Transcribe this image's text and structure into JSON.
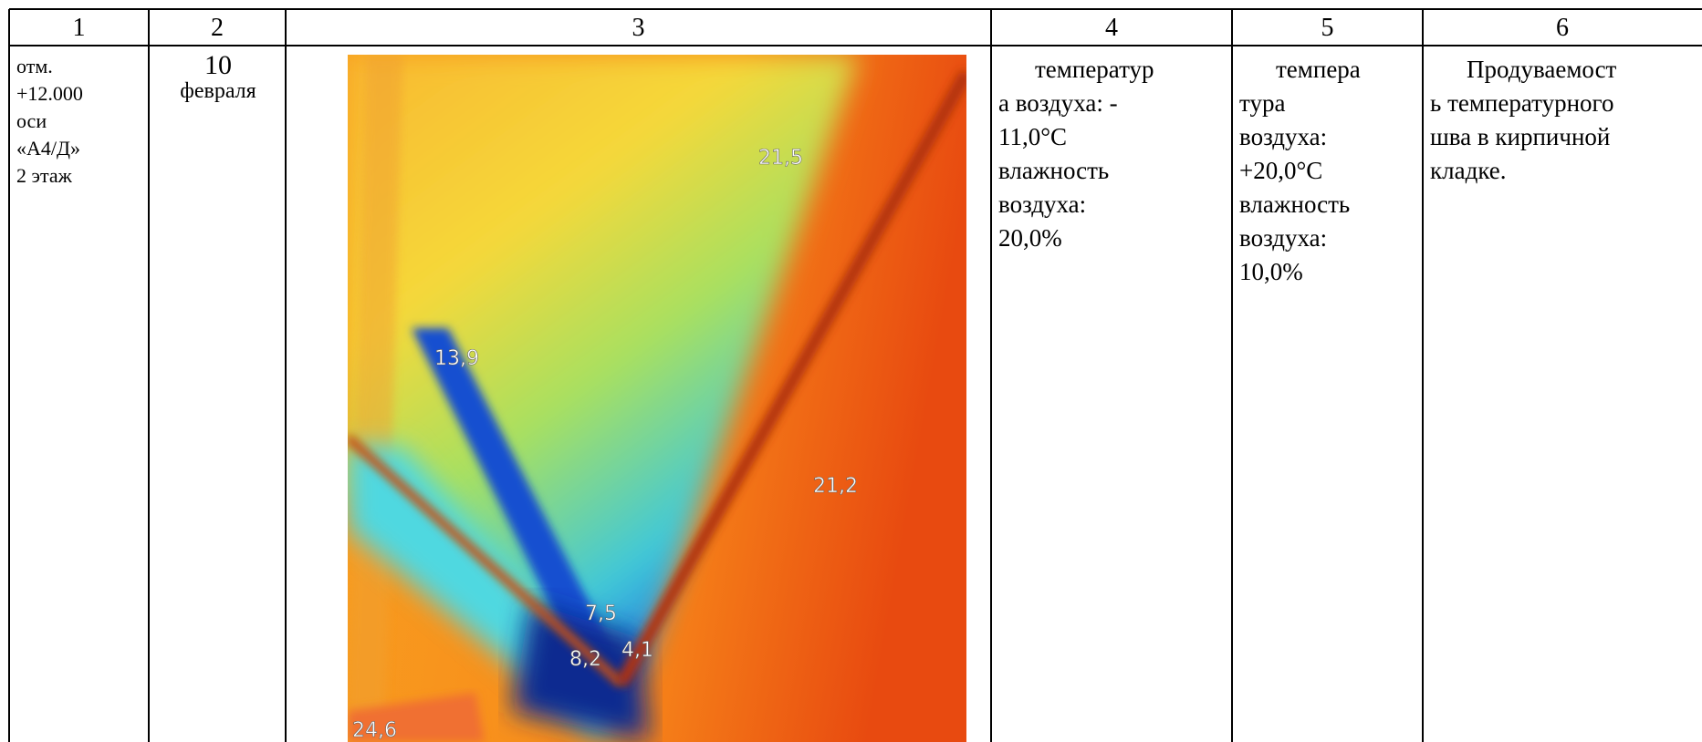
{
  "table": {
    "header": [
      "1",
      "2",
      "3",
      "4",
      "5",
      "6"
    ],
    "rows": [
      [
        [
          "отм.",
          "+12.000",
          "оси",
          "«А4/Д»",
          "2 этаж"
        ],
        [
          "10",
          "февраля"
        ],
        [],
        [
          "температур",
          "а воздуха: -",
          "11,0°C",
          "влажность",
          "воздуха:",
          "20,0%"
        ],
        [
          "темпера",
          "тура",
          "воздуха:",
          "+20,0°C",
          "влажность",
          "воздуха:",
          "10,0%"
        ],
        [
          "Продуваемост",
          "ь температурного",
          "шва в кирпичной",
          "кладке."
        ]
      ]
    ]
  },
  "thermal_image": {
    "labels": [
      "21,5",
      "13,9",
      "21,2",
      "7,5",
      "4,1",
      "8,2",
      "24,6"
    ]
  }
}
